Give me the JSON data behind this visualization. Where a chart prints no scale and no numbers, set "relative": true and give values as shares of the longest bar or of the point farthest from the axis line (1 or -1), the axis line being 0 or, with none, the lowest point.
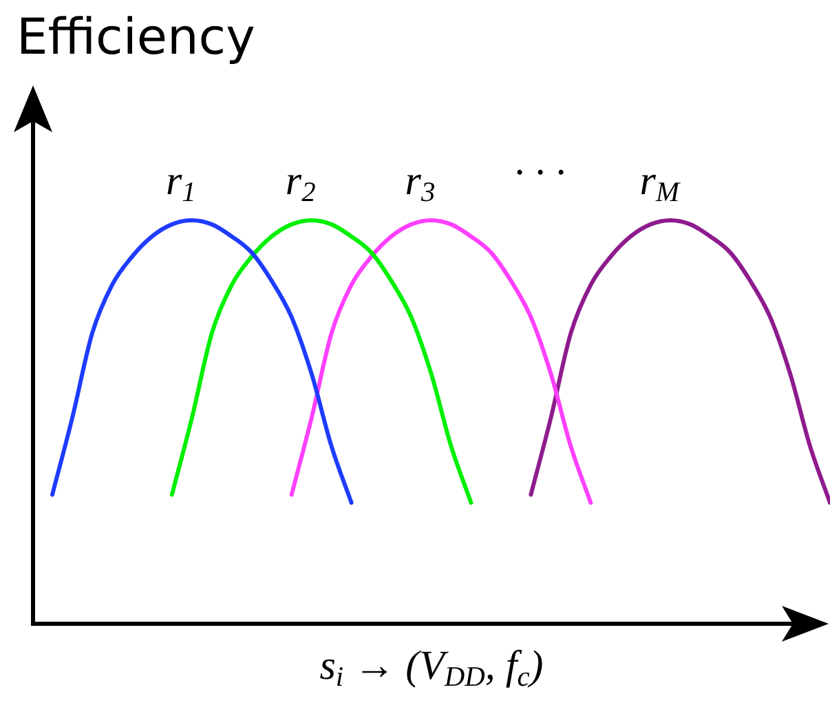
{
  "chart_data": {
    "type": "line",
    "relative": true,
    "ylabel": "Efficiency",
    "xlabel": "s$_{i}$ → (V$_{DD}$, f$_{c}$)",
    "annotations": [
      "· · ·"
    ],
    "marker": "none",
    "line_style": "solid",
    "categories": [
      null,
      null,
      null,
      null,
      null,
      null,
      null,
      null,
      null,
      null,
      null,
      null,
      null,
      null,
      null,
      null,
      null,
      null,
      null,
      null,
      null,
      null,
      null,
      null,
      null,
      null,
      null,
      null,
      null,
      null,
      null,
      null,
      null,
      null,
      null,
      null,
      null,
      null,
      null,
      null
    ],
    "series": [
      {
        "name": "r$_{1}$",
        "color": "#1e3cff",
        "values": [
          0.32,
          0.51,
          0.72,
          0.84,
          0.91,
          0.96,
          0.99,
          1,
          0.99,
          0.96,
          0.92,
          0.85,
          0.76,
          0.62,
          0.44,
          0.3,
          null,
          null,
          null,
          null,
          null,
          null,
          null,
          null,
          null,
          null,
          null,
          null,
          null,
          null,
          null,
          null,
          null,
          null,
          null,
          null,
          null,
          null,
          null,
          null
        ]
      },
      {
        "name": "r$_{2}$",
        "color": "#00f000",
        "values": [
          null,
          null,
          null,
          null,
          null,
          null,
          0.32,
          0.51,
          0.72,
          0.84,
          0.91,
          0.96,
          0.99,
          1,
          0.99,
          0.96,
          0.92,
          0.85,
          0.76,
          0.62,
          0.44,
          0.3,
          null,
          null,
          null,
          null,
          null,
          null,
          null,
          null,
          null,
          null,
          null,
          null,
          null,
          null,
          null,
          null,
          null,
          null
        ]
      },
      {
        "name": "r$_{3}$",
        "color": "#ff40ff",
        "values": [
          null,
          null,
          null,
          null,
          null,
          null,
          null,
          null,
          null,
          null,
          null,
          null,
          0.32,
          0.51,
          0.72,
          0.84,
          0.91,
          0.96,
          0.99,
          1,
          0.99,
          0.96,
          0.92,
          0.85,
          0.76,
          0.62,
          0.44,
          0.3,
          null,
          null,
          null,
          null,
          null,
          null,
          null,
          null,
          null,
          null,
          null,
          null
        ]
      },
      {
        "name": "r$_{M}$",
        "color": "#8e1b8e",
        "values": [
          null,
          null,
          null,
          null,
          null,
          null,
          null,
          null,
          null,
          null,
          null,
          null,
          null,
          null,
          null,
          null,
          null,
          null,
          null,
          null,
          null,
          null,
          null,
          null,
          0.32,
          0.51,
          0.72,
          0.84,
          0.91,
          0.96,
          0.99,
          1,
          0.99,
          0.96,
          0.92,
          0.85,
          0.76,
          0.62,
          0.44,
          0.3
        ]
      }
    ]
  }
}
